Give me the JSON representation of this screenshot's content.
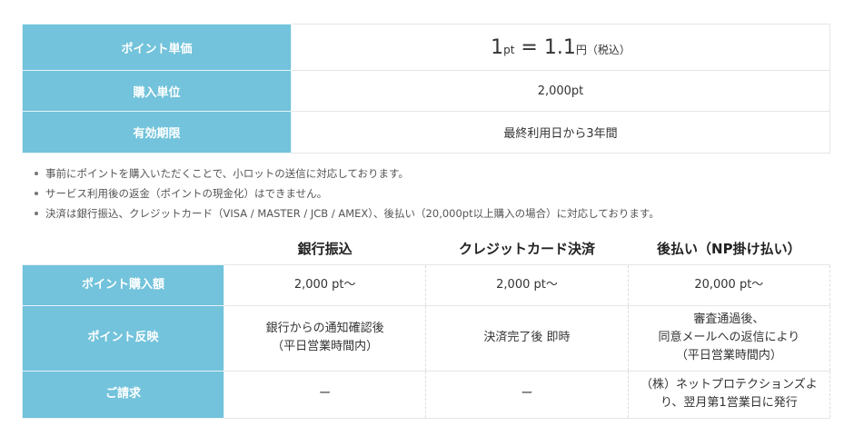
{
  "price_table": {
    "rows": [
      {
        "label": "ポイント単価",
        "value_parts": {
          "a": "1",
          "a_unit": "pt",
          "eq": " = ",
          "b": "1.1",
          "b_unit": "円",
          "tax": "（税込）"
        }
      },
      {
        "label": "購入単位",
        "value": "2,000pt"
      },
      {
        "label": "有効期限",
        "value": "最終利用日から3年間"
      }
    ]
  },
  "notes": [
    "事前にポイントを購入いただくことで、小ロットの送信に対応しております。",
    "サービス利用後の返金（ポイントの現金化）はできません。",
    "決済は銀行振込、クレジットカード（VISA / MASTER / JCB / AMEX）、後払い（20,000pt以上購入の場合）に対応しております。"
  ],
  "payment_table": {
    "headers": [
      "銀行振込",
      "クレジットカード決済",
      "後払い（NP掛け払い）"
    ],
    "rows": [
      {
        "label": "ポイント購入額",
        "cells": [
          [
            "2,000 pt〜"
          ],
          [
            "2,000 pt〜"
          ],
          [
            "20,000 pt〜"
          ]
        ]
      },
      {
        "label": "ポイント反映",
        "cells": [
          [
            "銀行からの通知確認後",
            "（平日営業時間内）"
          ],
          [
            "決済完了後 即時"
          ],
          [
            "審査通過後、",
            "同意メールへの返信により",
            "（平日営業時間内）"
          ]
        ]
      },
      {
        "label": "ご請求",
        "cells": [
          [
            "ー"
          ],
          [
            "ー"
          ],
          [
            "（株）ネットプロテクションズよ",
            "り、翌月第1営業日に発行"
          ]
        ]
      }
    ]
  },
  "colors": {
    "label_bg": "#72c3db"
  }
}
